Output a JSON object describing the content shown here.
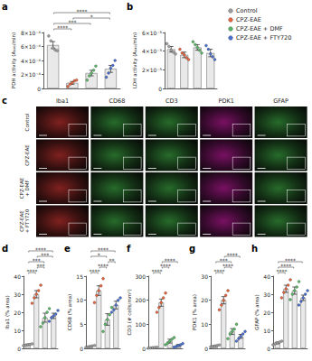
{
  "chart_data": [
    {
      "type": "bar",
      "panel_label": "a",
      "y_label": "PDH activity (A₃₄₀/min)",
      "tick_labels": "y",
      "categories": [
        "Control",
        "CPZ-EAE",
        "CPZ-EAE + DMF",
        "CPZ-EAE + FTY720"
      ],
      "colors": [
        "#9e9e9e",
        "#e8643c",
        "#58b866",
        "#4a6fd1"
      ],
      "values": [
        0.00062,
        8e-05,
        0.00022,
        0.00028
      ],
      "errors": [
        5e-05,
        2e-05,
        4e-05,
        5e-05
      ],
      "points": [
        [
          0.00075,
          0.00068,
          0.00058,
          0.00055,
          0.00054
        ],
        [
          3e-05,
          6e-05,
          8e-05,
          0.00011,
          0.00012
        ],
        [
          0.00012,
          0.00018,
          0.00022,
          0.00026,
          0.00032
        ],
        [
          0.00016,
          0.00022,
          0.00029,
          0.00033,
          0.0004
        ]
      ],
      "ylim": [
        0,
        0.0008
      ],
      "yticks": [
        0,
        {
          "value": 0.0002,
          "label": "2×10⁻⁴"
        },
        {
          "value": 0.0004,
          "label": "4×10⁻⁴"
        },
        {
          "value": 0.0006,
          "label": "6×10⁻⁴"
        },
        {
          "value": 0.0008,
          "label": "8×10⁻⁴"
        }
      ],
      "significance": [
        {
          "from": 0,
          "to": 1,
          "label": "****"
        },
        {
          "from": 0,
          "to": 2,
          "label": "***"
        },
        {
          "from": 0,
          "to": 3,
          "label": "****"
        },
        {
          "from": 1,
          "to": 3,
          "label": "*"
        }
      ]
    },
    {
      "type": "bar",
      "panel_label": "b",
      "y_label": "LDH activity (A₃₄₀/min)",
      "tick_labels": "y",
      "legend": "right",
      "categories": [
        "Control",
        "CPZ-EAE",
        "CPZ-EAE + DMF",
        "CPZ-EAE + FTY720"
      ],
      "colors": [
        "#9e9e9e",
        "#e8643c",
        "#58b866",
        "#4a6fd1"
      ],
      "values": [
        0.0042,
        0.0036,
        0.0044,
        0.0038
      ],
      "errors": [
        0.0003,
        0.0003,
        0.0003,
        0.0004
      ],
      "points": [
        [
          0.0048,
          0.0045,
          0.0041,
          0.0039,
          0.0037
        ],
        [
          0.0042,
          0.0038,
          0.0036,
          0.0033,
          0.0031
        ],
        [
          0.005,
          0.0047,
          0.0044,
          0.0041,
          0.0038
        ],
        [
          0.0046,
          0.0042,
          0.0037,
          0.0034,
          0.0031
        ]
      ],
      "ylim": [
        0,
        0.006
      ],
      "yticks": [
        0,
        {
          "value": 0.002,
          "label": "2×10⁻³"
        },
        {
          "value": 0.004,
          "label": "4×10⁻³"
        },
        {
          "value": 0.006,
          "label": "6×10⁻³"
        }
      ],
      "significance": []
    },
    {
      "type": "bar",
      "panel_label": "d",
      "y_label": "Iba1 (% area)",
      "tick_labels": "y",
      "categories": [
        "Control",
        "CPZ-EAE",
        "CPZ-EAE + DMF",
        "CPZ-EAE + FTY720"
      ],
      "colors": [
        "#9e9e9e",
        "#e8643c",
        "#58b866",
        "#4a6fd1"
      ],
      "values": [
        2,
        30,
        17,
        18
      ],
      "errors": [
        0.4,
        2,
        2.5,
        1.5
      ],
      "points": [
        [
          1.5,
          1.8,
          2,
          2.2,
          2.5
        ],
        [
          25,
          28,
          30,
          32,
          35
        ],
        [
          12,
          14,
          17,
          20,
          22
        ],
        [
          15,
          17,
          18,
          19,
          21
        ]
      ],
      "ylim": [
        0,
        40
      ],
      "yticks": [
        0,
        10,
        20,
        30,
        40
      ],
      "significance": [
        {
          "from": 0,
          "to": 1,
          "label": "****"
        },
        {
          "from": 0,
          "to": 2,
          "label": "***"
        },
        {
          "from": 0,
          "to": 3,
          "label": "****"
        },
        {
          "from": 1,
          "to": 2,
          "label": "***"
        },
        {
          "from": 1,
          "to": 3,
          "label": "***"
        }
      ]
    },
    {
      "type": "bar",
      "panel_label": "e",
      "y_label": "CD68 (% area)",
      "tick_labels": "y",
      "categories": [
        "Control",
        "CPZ-EAE",
        "CPZ-EAE + DMF",
        "CPZ-EAE + FTY720"
      ],
      "colors": [
        "#9e9e9e",
        "#e8643c",
        "#58b866",
        "#4a6fd1"
      ],
      "values": [
        0.4,
        12,
        6,
        9
      ],
      "errors": [
        0.1,
        1,
        1.2,
        0.8
      ],
      "points": [
        [
          0.2,
          0.3,
          0.4,
          0.5,
          0.6
        ],
        [
          9.5,
          11,
          12,
          13,
          14.5
        ],
        [
          3.5,
          5,
          6,
          7,
          8.5
        ],
        [
          7.5,
          8,
          9,
          10,
          10.5
        ]
      ],
      "ylim": [
        0,
        15
      ],
      "yticks": [
        0,
        5,
        10,
        15
      ],
      "significance": [
        {
          "from": 0,
          "to": 1,
          "label": "****"
        },
        {
          "from": 0,
          "to": 2,
          "label": "*"
        },
        {
          "from": 0,
          "to": 3,
          "label": "****"
        },
        {
          "from": 1,
          "to": 2,
          "label": "****"
        },
        {
          "from": 2,
          "to": 3,
          "label": "**"
        }
      ]
    },
    {
      "type": "bar",
      "panel_label": "f",
      "y_label": "CD3 (# cells/mm²)",
      "tick_labels": "y",
      "categories": [
        "Control",
        "CPZ-EAE",
        "CPZ-EAE + DMF",
        "CPZ-EAE + FTY720"
      ],
      "colors": [
        "#9e9e9e",
        "#e8643c",
        "#58b866",
        "#4a6fd1"
      ],
      "values": [
        3,
        190,
        30,
        12
      ],
      "errors": [
        1,
        15,
        8,
        4
      ],
      "points": [
        [
          1,
          2,
          3,
          4,
          5
        ],
        [
          150,
          170,
          190,
          210,
          230
        ],
        [
          15,
          22,
          30,
          38,
          45
        ],
        [
          5,
          8,
          12,
          15,
          20
        ]
      ],
      "ylim": [
        0,
        300
      ],
      "yticks": [
        0,
        100,
        200,
        300
      ],
      "significance": [
        {
          "from": 0,
          "to": 1,
          "label": "****"
        },
        {
          "from": 1,
          "to": 2,
          "label": "****"
        },
        {
          "from": 1,
          "to": 3,
          "label": "****"
        }
      ]
    },
    {
      "type": "bar",
      "panel_label": "g",
      "y_label": "PDK1 (% area)",
      "tick_labels": "y",
      "categories": [
        "Control",
        "CPZ-EAE",
        "CPZ-EAE + DMF",
        "CPZ-EAE + FTY720"
      ],
      "colors": [
        "#9e9e9e",
        "#e8643c",
        "#58b866",
        "#4a6fd1"
      ],
      "values": [
        1,
        20,
        7,
        5
      ],
      "errors": [
        0.2,
        1.5,
        1.2,
        0.8
      ],
      "points": [
        [
          0.6,
          0.8,
          1,
          1.2,
          1.4
        ],
        [
          16,
          18,
          20,
          22,
          24
        ],
        [
          4,
          6,
          7,
          8,
          10
        ],
        [
          3,
          4,
          5,
          6,
          7
        ]
      ],
      "ylim": [
        0,
        30
      ],
      "yticks": [
        0,
        10,
        20,
        30
      ],
      "significance": [
        {
          "from": 0,
          "to": 1,
          "label": "****"
        },
        {
          "from": 0,
          "to": 2,
          "label": "***"
        },
        {
          "from": 1,
          "to": 2,
          "label": "****"
        },
        {
          "from": 1,
          "to": 3,
          "label": "****"
        }
      ]
    },
    {
      "type": "bar",
      "panel_label": "h",
      "y_label": "GFAP (% area)",
      "tick_labels": "y",
      "categories": [
        "Control",
        "CPZ-EAE",
        "CPZ-EAE + DMF",
        "CPZ-EAE + FTY720"
      ],
      "colors": [
        "#9e9e9e",
        "#e8643c",
        "#58b866",
        "#4a6fd1"
      ],
      "values": [
        3,
        33,
        32,
        28
      ],
      "errors": [
        0.5,
        2,
        2,
        1.5
      ],
      "points": [
        [
          2,
          2.5,
          3,
          3.5,
          4
        ],
        [
          28,
          31,
          33,
          35,
          38
        ],
        [
          27,
          30,
          32,
          34,
          37
        ],
        [
          24,
          26,
          28,
          30,
          32
        ]
      ],
      "ylim": [
        0,
        40
      ],
      "yticks": [
        0,
        10,
        20,
        30,
        40
      ],
      "significance": [
        {
          "from": 0,
          "to": 1,
          "label": "****"
        },
        {
          "from": 0,
          "to": 2,
          "label": "****"
        },
        {
          "from": 0,
          "to": 3,
          "label": "****"
        }
      ]
    }
  ],
  "image_panel": {
    "panel_label": "c",
    "rows": [
      "Control",
      "CPZ-EAE",
      "CPZ-EAE + DMF",
      "CPZ-EAE + FTY720"
    ],
    "columns": [
      {
        "label": "Iba1",
        "color": "#e53935"
      },
      {
        "label": "CD68",
        "color": "#43c04a"
      },
      {
        "label": "CD3",
        "color": "#43c04a"
      },
      {
        "label": "PDK1",
        "color": "#d81bb0"
      },
      {
        "label": "GFAP",
        "color": "#43c04a"
      }
    ]
  }
}
